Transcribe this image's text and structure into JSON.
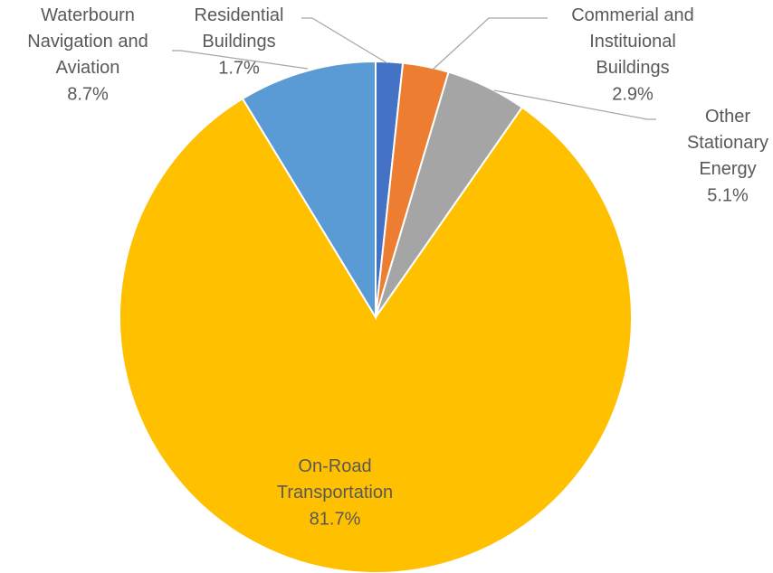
{
  "chart_data": {
    "type": "pie",
    "categories": [
      "Residential Buildings",
      "Commerial and Instituional Buildings",
      "Other Stationary Energy",
      "On-Road Transportation",
      "Waterbourn Navigation and Aviation"
    ],
    "values": [
      1.7,
      2.9,
      5.1,
      81.7,
      8.7
    ],
    "value_labels": [
      "1.7%",
      "2.9%",
      "5.1%",
      "81.7%",
      "8.7%"
    ],
    "colors": [
      "#4472c4",
      "#ed7d31",
      "#a5a5a5",
      "#ffc000",
      "#5b9bd5"
    ]
  }
}
